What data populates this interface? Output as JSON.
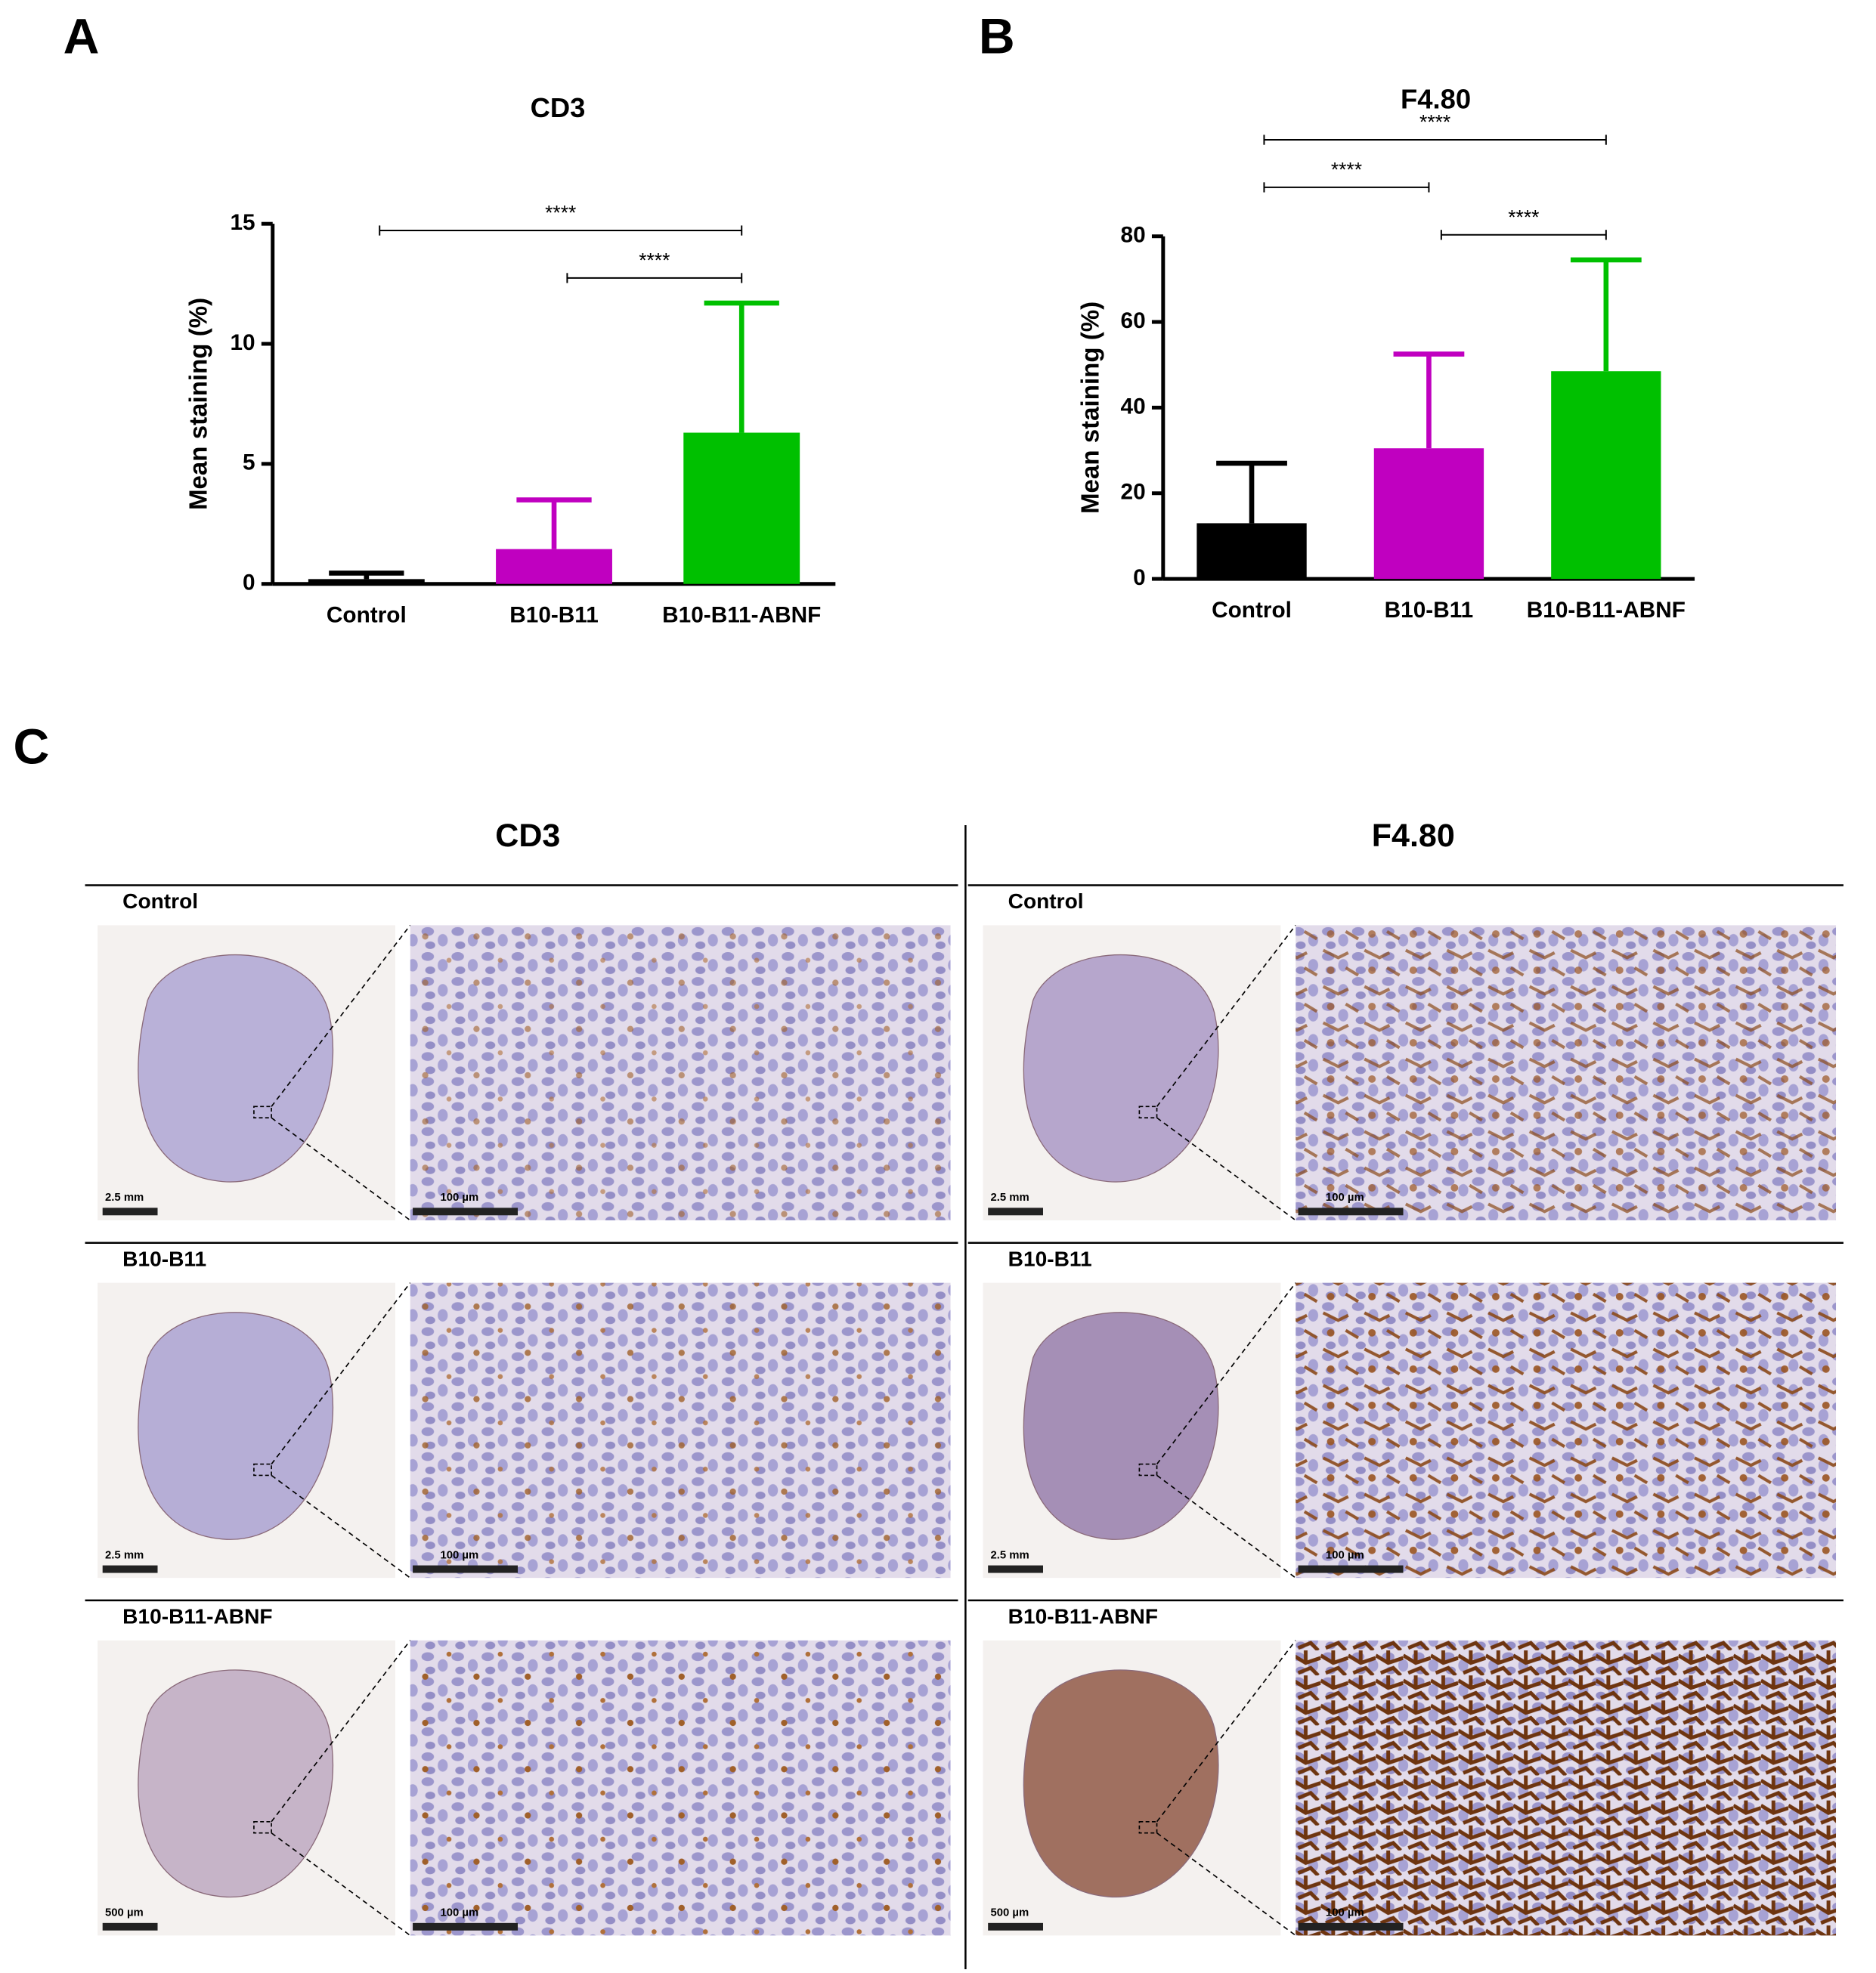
{
  "chart_data": [
    {
      "type": "bar",
      "panel": "A",
      "title": "CD3",
      "ylabel": "Mean staining (%)",
      "categories": [
        "Control",
        "B10-B11",
        "B10-B11-ABNF"
      ],
      "values": [
        0.2,
        1.45,
        6.3
      ],
      "errors": [
        0.25,
        2.05,
        5.4
      ],
      "colors": [
        "#000000",
        "#c000c0",
        "#00c000"
      ],
      "ylim": [
        0,
        15
      ],
      "yticks": [
        0,
        5,
        10,
        15
      ],
      "annotations": [
        {
          "text": "****",
          "between": [
            "Control",
            "B10-B11-ABNF"
          ]
        },
        {
          "text": "****",
          "between": [
            "B10-B11",
            "B10-B11-ABNF"
          ]
        }
      ]
    },
    {
      "type": "bar",
      "panel": "B",
      "title": "F4.80",
      "ylabel": "Mean staining (%)",
      "categories": [
        "Control",
        "B10-B11",
        "B10-B11-ABNF"
      ],
      "values": [
        13,
        30.5,
        48.5
      ],
      "errors": [
        14,
        22,
        26
      ],
      "colors": [
        "#000000",
        "#c000c0",
        "#00c000"
      ],
      "ylim": [
        0,
        80
      ],
      "yticks": [
        0,
        20,
        40,
        60,
        80
      ],
      "annotations": [
        {
          "text": "****",
          "between": [
            "Control",
            "B10-B11-ABNF"
          ]
        },
        {
          "text": "****",
          "between": [
            "B10-B11",
            "B10-B11-ABNF"
          ]
        },
        {
          "text": "****",
          "between": [
            "Control",
            "B10-B11"
          ]
        }
      ]
    }
  ],
  "micrograph_panel": {
    "label": "C",
    "columns": [
      "CD3",
      "F4.80"
    ],
    "rows": [
      "Control",
      "B10-B11",
      "B10-B11-ABNF"
    ],
    "cells": [
      [
        {
          "overview_scale": "2.5 mm",
          "detail_scale": "100 µm"
        },
        {
          "overview_scale": "2.5 mm",
          "detail_scale": "100 µm"
        },
        {
          "overview_scale": "500 µm",
          "detail_scale": "100 µm"
        }
      ],
      [
        {
          "overview_scale": "2.5 mm",
          "detail_scale": "100 µm"
        },
        {
          "overview_scale": "2.5 mm",
          "detail_scale": "100 µm"
        },
        {
          "overview_scale": "500 µm",
          "detail_scale": "100 µm"
        }
      ]
    ]
  }
}
